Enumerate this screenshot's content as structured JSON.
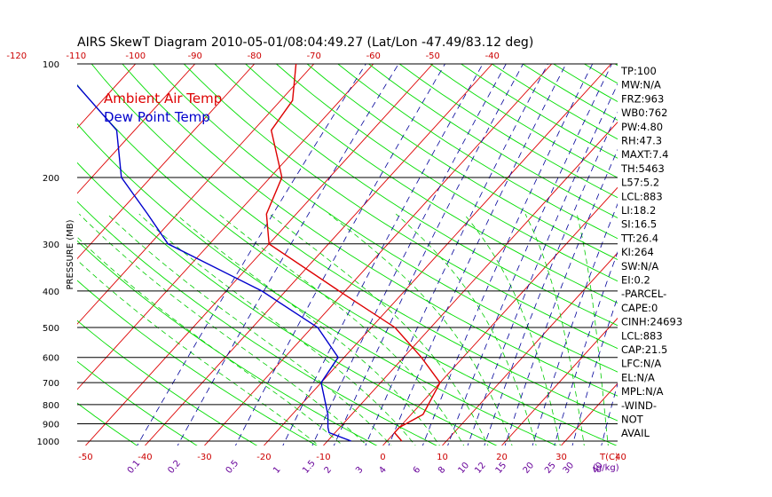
{
  "chart_data": {
    "type": "line",
    "title": "AIRS SkewT Diagram 2010-05-01/08:04:49.27 (Lat/Lon -47.49/83.12 deg)",
    "ylabel": "PRESSURE (MB)",
    "xlabel_bottom": "T(C)",
    "xlabel_mixing": "(g/kg)",
    "pressure_ticks": [
      100,
      200,
      300,
      400,
      500,
      600,
      700,
      800,
      900,
      1000
    ],
    "temp_ticks_bottom": [
      -50,
      -40,
      -30,
      -20,
      -10,
      0,
      10,
      20,
      30,
      40
    ],
    "temp_ticks_top": [
      -120,
      -110,
      -100,
      -90,
      -80,
      -70,
      -60,
      -50,
      -40
    ],
    "mixing_ratio_labels": [
      "0.1",
      "0.2",
      "0.5",
      "1",
      "1.5",
      "2",
      "3",
      "4",
      "6",
      "8",
      "10",
      "12",
      "15",
      "20",
      "25",
      "30",
      "40"
    ],
    "yscale": "log",
    "ylim": [
      1050,
      100
    ],
    "legend_placement": "top-left",
    "series": [
      {
        "name": "Ambient Air Temp",
        "color": "#dd0000",
        "pressure": [
          1000,
          950,
          920,
          850,
          700,
          600,
          500,
          400,
          300,
          250,
          200,
          150,
          125,
          100
        ],
        "temp": [
          2.5,
          0,
          0,
          2,
          0,
          -7,
          -16,
          -31,
          -50,
          -55,
          -58,
          -67,
          -68,
          -73
        ]
      },
      {
        "name": "Dew Point Temp",
        "color": "#0000cc",
        "pressure": [
          1000,
          950,
          920,
          850,
          700,
          600,
          500,
          400,
          300,
          250,
          200,
          150,
          100
        ],
        "temp": [
          -6,
          -11,
          -12,
          -14,
          -20,
          -21,
          -29,
          -44,
          -67,
          -75,
          -85,
          -93,
          -113
        ]
      }
    ],
    "indices": [
      "TP:100",
      "MW:N/A",
      "FRZ:963",
      "WB0:762",
      "PW:4.80",
      "RH:47.3",
      "MAXT:7.4",
      "TH:5463",
      "L57:5.2",
      "LCL:883",
      "LI:18.2",
      "SI:16.5",
      "TT:26.4",
      "KI:264",
      "SW:N/A",
      "EI:0.2",
      "-PARCEL-",
      "CAPE:0",
      "CINH:24693",
      "LCL:883",
      "CAP:21.5",
      "LFC:N/A",
      "EL:N/A",
      "MPL:N/A",
      "-WIND-",
      "NOT",
      "AVAIL"
    ],
    "colors": {
      "isotherm": "#dd0000",
      "dry_adiabat": "#00dd00",
      "moist_adiabat": "#00cc00",
      "mixing_ratio": "#000099",
      "isobar": "#000000",
      "tick_label_temp": "#cc0000",
      "tick_label_mixing": "#660099"
    }
  }
}
